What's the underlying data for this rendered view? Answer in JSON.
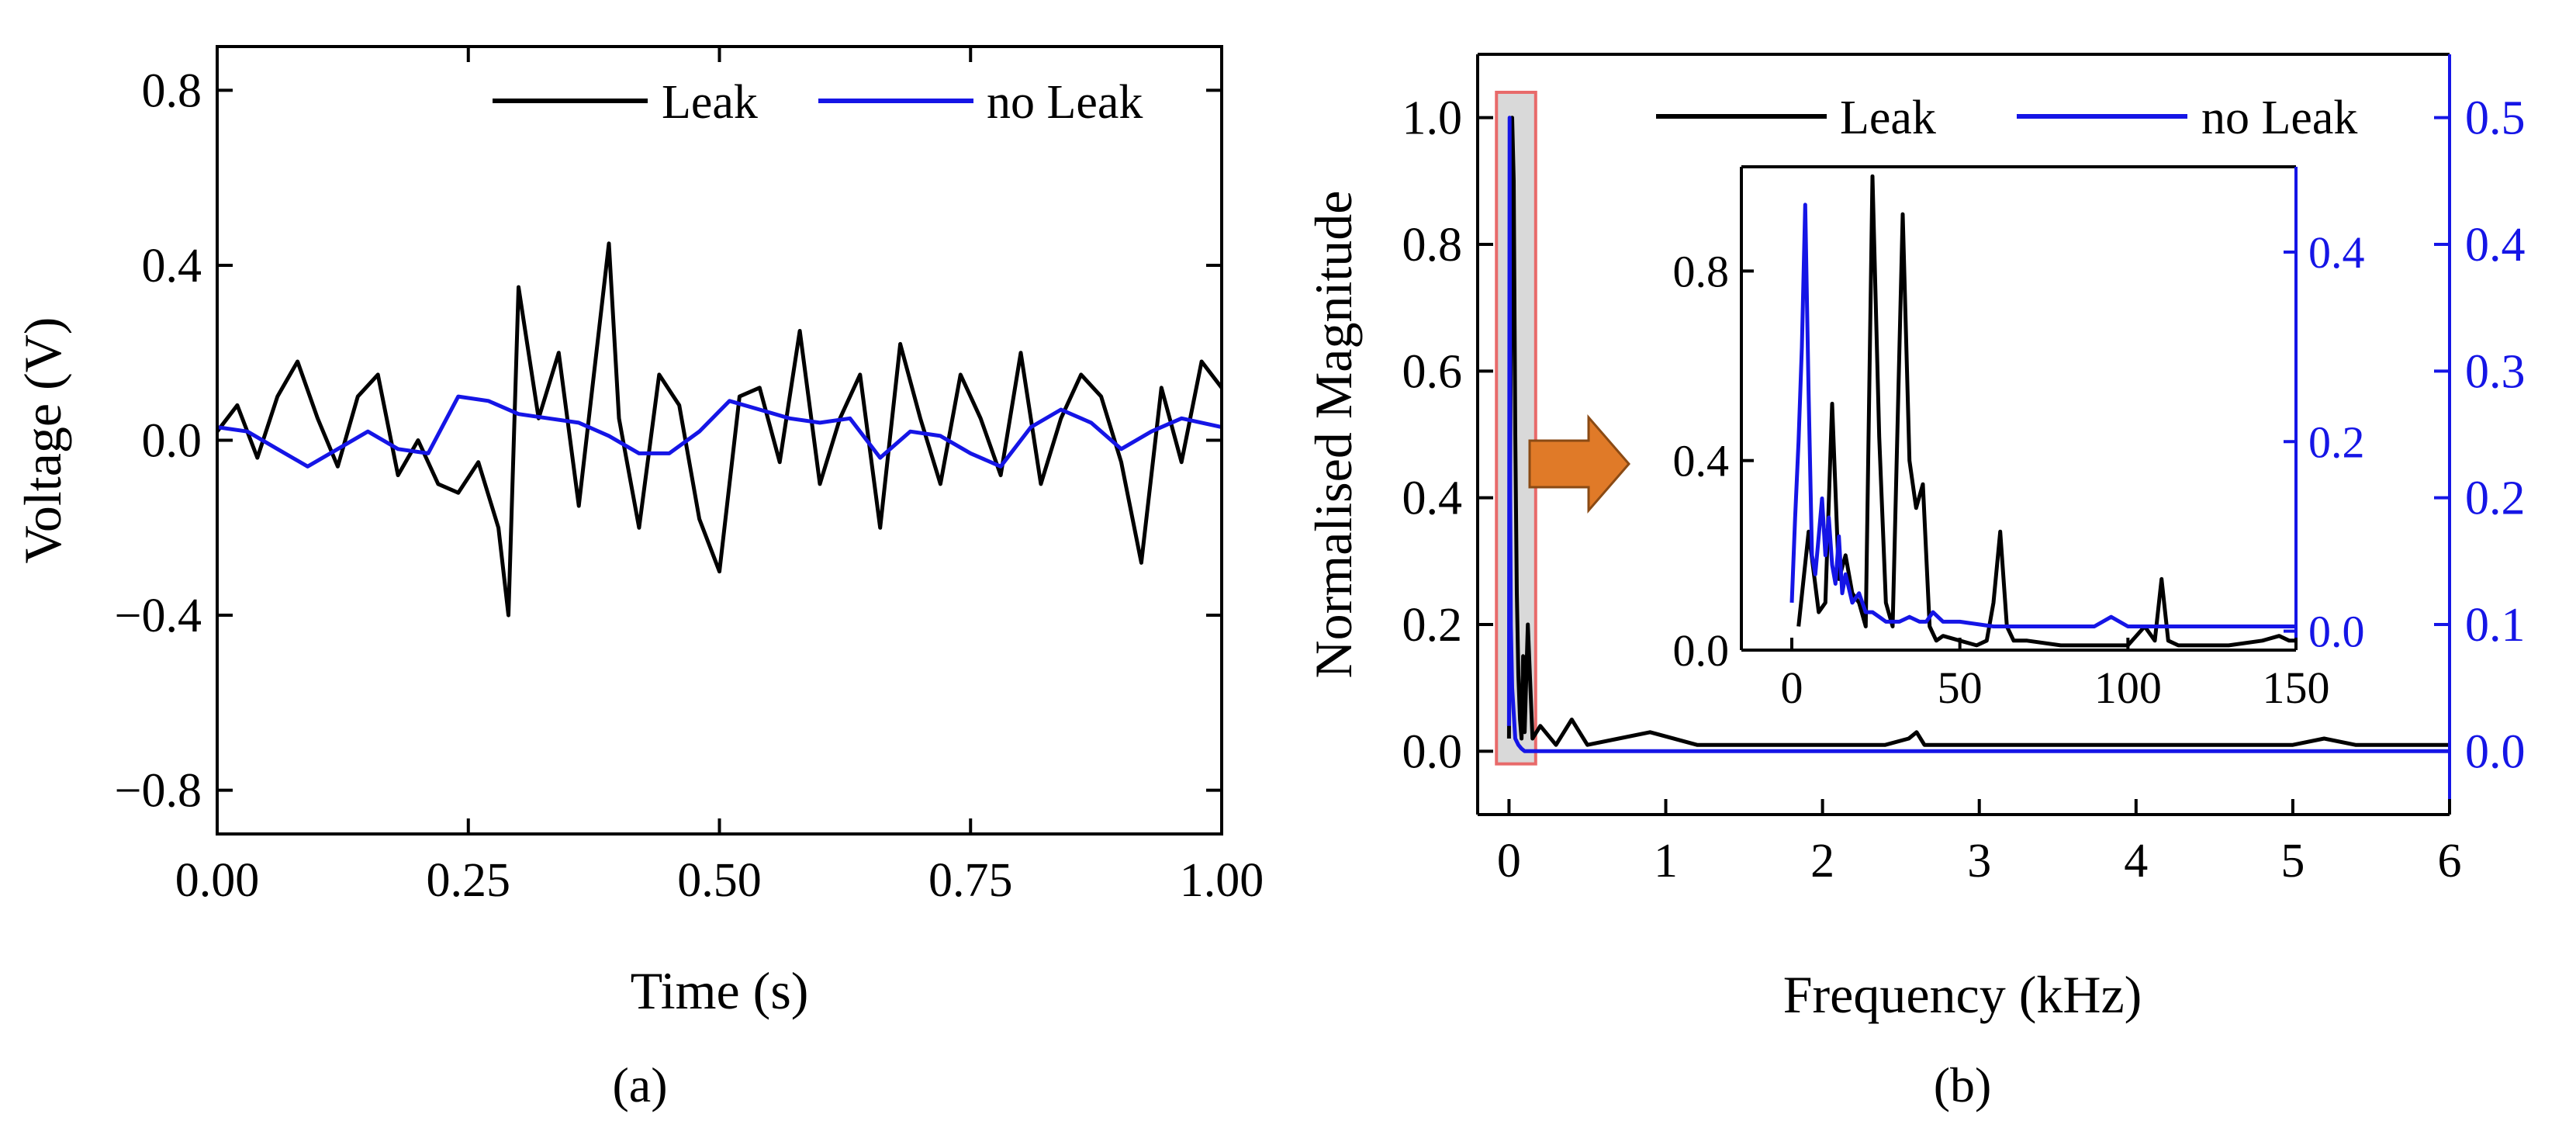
{
  "figure": {
    "background": "#ffffff"
  },
  "panel_a": {
    "caption": "(a)",
    "chart_data": {
      "type": "line",
      "xlabel": "Time (s)",
      "ylabel": "Voltage (V)",
      "xlim": [
        0,
        1
      ],
      "ylim": [
        -0.9,
        0.9
      ],
      "xticks": [
        0,
        0.25,
        0.5,
        0.75,
        1
      ],
      "xtick_labels": [
        "0.00",
        "0.25",
        "0.50",
        "0.75",
        "1.00"
      ],
      "yticks": [
        -0.8,
        -0.4,
        0,
        0.4,
        0.8
      ],
      "ytick_labels": [
        "−0.8",
        "−0.4",
        "0.0",
        "0.4",
        "0.8"
      ],
      "legend": {
        "position": "top-right",
        "entries": [
          "Leak",
          "no Leak"
        ]
      },
      "series": [
        {
          "name": "Leak",
          "color": "#000000",
          "x": [
            0,
            0.02,
            0.04,
            0.06,
            0.08,
            0.1,
            0.12,
            0.14,
            0.16,
            0.18,
            0.2,
            0.22,
            0.24,
            0.26,
            0.28,
            0.29,
            0.3,
            0.32,
            0.34,
            0.36,
            0.38,
            0.39,
            0.4,
            0.42,
            0.44,
            0.46,
            0.48,
            0.5,
            0.52,
            0.54,
            0.56,
            0.58,
            0.6,
            0.62,
            0.64,
            0.66,
            0.68,
            0.7,
            0.72,
            0.74,
            0.76,
            0.78,
            0.8,
            0.82,
            0.84,
            0.86,
            0.88,
            0.9,
            0.92,
            0.94,
            0.96,
            0.98,
            1
          ],
          "y": [
            0.02,
            0.08,
            -0.04,
            0.1,
            0.18,
            0.05,
            -0.06,
            0.1,
            0.15,
            -0.08,
            0,
            -0.1,
            -0.12,
            -0.05,
            -0.2,
            -0.4,
            0.35,
            0.05,
            0.2,
            -0.15,
            0.25,
            0.45,
            0.05,
            -0.2,
            0.15,
            0.08,
            -0.18,
            -0.3,
            0.1,
            0.12,
            -0.05,
            0.25,
            -0.1,
            0.05,
            0.15,
            -0.2,
            0.22,
            0.05,
            -0.1,
            0.15,
            0.05,
            -0.08,
            0.2,
            -0.1,
            0.05,
            0.15,
            0.1,
            -0.05,
            -0.28,
            0.12,
            -0.05,
            0.18,
            0.12
          ]
        },
        {
          "name": "no Leak",
          "color": "#1515e6",
          "x": [
            0,
            0.03,
            0.06,
            0.09,
            0.12,
            0.15,
            0.18,
            0.21,
            0.24,
            0.27,
            0.3,
            0.33,
            0.36,
            0.39,
            0.42,
            0.45,
            0.48,
            0.51,
            0.54,
            0.57,
            0.6,
            0.63,
            0.66,
            0.69,
            0.72,
            0.75,
            0.78,
            0.81,
            0.84,
            0.87,
            0.9,
            0.93,
            0.96,
            1
          ],
          "y": [
            0.03,
            0.02,
            -0.02,
            -0.06,
            -0.02,
            0.02,
            -0.02,
            -0.03,
            0.1,
            0.09,
            0.06,
            0.05,
            0.04,
            0.01,
            -0.03,
            -0.03,
            0.02,
            0.09,
            0.07,
            0.05,
            0.04,
            0.05,
            -0.04,
            0.02,
            0.01,
            -0.03,
            -0.06,
            0.03,
            0.07,
            0.04,
            -0.02,
            0.02,
            0.05,
            0.03
          ]
        }
      ]
    }
  },
  "panel_b": {
    "caption": "(b)",
    "chart_data": {
      "type": "line",
      "xlabel": "Frequency (kHz)",
      "ylabel": "Normalised Magnitude",
      "xlim": [
        -0.2,
        6
      ],
      "ylim": [
        -0.1,
        1.1
      ],
      "ylim_right": [
        -0.05,
        0.55
      ],
      "xticks": [
        0,
        1,
        2,
        3,
        4,
        5,
        6
      ],
      "xtick_labels": [
        "0",
        "1",
        "2",
        "3",
        "4",
        "5",
        "6"
      ],
      "yticks": [
        0,
        0.2,
        0.4,
        0.6,
        0.8,
        1.0
      ],
      "ytick_labels": [
        "0.0",
        "0.2",
        "0.4",
        "0.6",
        "0.8",
        "1.0"
      ],
      "yticks_right": [
        0,
        0.1,
        0.2,
        0.3,
        0.4,
        0.5
      ],
      "ytick_labels_right": [
        "0.0",
        "0.1",
        "0.2",
        "0.3",
        "0.4",
        "0.5"
      ],
      "legend": {
        "position": "top-right",
        "entries": [
          "Leak",
          "no Leak"
        ]
      },
      "highlight_region": {
        "x_range": [
          -0.08,
          0.17
        ],
        "y_range": [
          -0.02,
          1.04
        ],
        "fill": "#d9d9d9",
        "edge": "#e86a6a"
      },
      "series": [
        {
          "name": "Leak",
          "color": "#000000",
          "axis": "left",
          "x": [
            0,
            0.005,
            0.01,
            0.02,
            0.03,
            0.04,
            0.05,
            0.06,
            0.07,
            0.08,
            0.09,
            0.1,
            0.12,
            0.15,
            0.2,
            0.3,
            0.4,
            0.5,
            0.7,
            0.9,
            1.2,
            1.5,
            1.8,
            2.0,
            2.2,
            2.4,
            2.55,
            2.6,
            2.65,
            2.8,
            3.0,
            3.2,
            3.5,
            3.8,
            4.0,
            4.2,
            4.5,
            4.8,
            5.0,
            5.2,
            5.4,
            5.6,
            5.8,
            6.0
          ],
          "y": [
            0.02,
            0.3,
            0.55,
            1.0,
            0.9,
            0.5,
            0.25,
            0.12,
            0.05,
            0.02,
            0.15,
            0.03,
            0.2,
            0.02,
            0.04,
            0.01,
            0.05,
            0.01,
            0.02,
            0.03,
            0.01,
            0.01,
            0.01,
            0.01,
            0.01,
            0.01,
            0.02,
            0.03,
            0.01,
            0.01,
            0.01,
            0.01,
            0.01,
            0.01,
            0.01,
            0.01,
            0.01,
            0.01,
            0.01,
            0.02,
            0.01,
            0.01,
            0.01,
            0.01
          ]
        },
        {
          "name": "no Leak",
          "color": "#1515e6",
          "axis": "right",
          "x": [
            0,
            0.004,
            0.008,
            0.012,
            0.02,
            0.03,
            0.04,
            0.06,
            0.08,
            0.1,
            0.2,
            0.5,
            1,
            2,
            3,
            4,
            5,
            6
          ],
          "y": [
            0.02,
            0.5,
            0.2,
            0.1,
            0.05,
            0.03,
            0.01,
            0.005,
            0.002,
            0,
            0,
            0,
            0,
            0,
            0,
            0,
            0,
            0
          ]
        }
      ]
    },
    "inset": {
      "chart_data": {
        "type": "line",
        "xlim": [
          -15,
          150
        ],
        "ylim": [
          0,
          1.02
        ],
        "ylim_right": [
          -0.02,
          0.49
        ],
        "xticks": [
          0,
          50,
          100,
          150
        ],
        "xtick_labels": [
          "0",
          "50",
          "100",
          "150"
        ],
        "yticks": [
          0,
          0.4,
          0.8
        ],
        "ytick_labels": [
          "0.0",
          "0.4",
          "0.8"
        ],
        "yticks_right": [
          0,
          0.2,
          0.4
        ],
        "ytick_labels_right": [
          "0.0",
          "0.2",
          "0.4"
        ],
        "series": [
          {
            "name": "Leak",
            "color": "#000000",
            "axis": "left",
            "x": [
              2,
              5,
              8,
              10,
              12,
              14,
              16,
              18,
              20,
              22,
              24,
              26,
              28,
              30,
              33,
              35,
              37,
              39,
              41,
              43,
              45,
              50,
              55,
              58,
              60,
              62,
              64,
              66,
              70,
              80,
              90,
              100,
              105,
              108,
              110,
              112,
              115,
              120,
              130,
              140,
              145,
              148,
              150
            ],
            "y": [
              0.05,
              0.25,
              0.08,
              0.1,
              0.52,
              0.15,
              0.2,
              0.12,
              0.1,
              0.05,
              1.0,
              0.45,
              0.1,
              0.05,
              0.92,
              0.4,
              0.3,
              0.35,
              0.05,
              0.02,
              0.03,
              0.02,
              0.01,
              0.02,
              0.1,
              0.25,
              0.05,
              0.02,
              0.02,
              0.01,
              0.01,
              0.01,
              0.05,
              0.02,
              0.15,
              0.02,
              0.01,
              0.01,
              0.01,
              0.02,
              0.03,
              0.02,
              0.02
            ]
          },
          {
            "name": "no Leak",
            "color": "#1515e6",
            "axis": "right",
            "x": [
              0,
              1,
              2,
              3,
              4,
              5,
              6,
              7,
              8,
              9,
              10,
              11,
              12,
              13,
              14,
              15,
              16,
              18,
              20,
              22,
              24,
              26,
              28,
              30,
              32,
              35,
              38,
              40,
              42,
              45,
              50,
              60,
              70,
              80,
              90,
              95,
              100,
              110,
              120,
              130,
              140,
              150
            ],
            "y": [
              0.03,
              0.12,
              0.2,
              0.3,
              0.45,
              0.25,
              0.08,
              0.06,
              0.1,
              0.14,
              0.08,
              0.12,
              0.07,
              0.05,
              0.1,
              0.04,
              0.06,
              0.03,
              0.04,
              0.02,
              0.02,
              0.015,
              0.01,
              0.01,
              0.01,
              0.015,
              0.01,
              0.01,
              0.02,
              0.01,
              0.01,
              0.005,
              0.005,
              0.005,
              0.005,
              0.015,
              0.005,
              0.005,
              0.005,
              0.005,
              0.005,
              0.005
            ]
          }
        ]
      }
    },
    "arrow_color": "#e07a28"
  }
}
